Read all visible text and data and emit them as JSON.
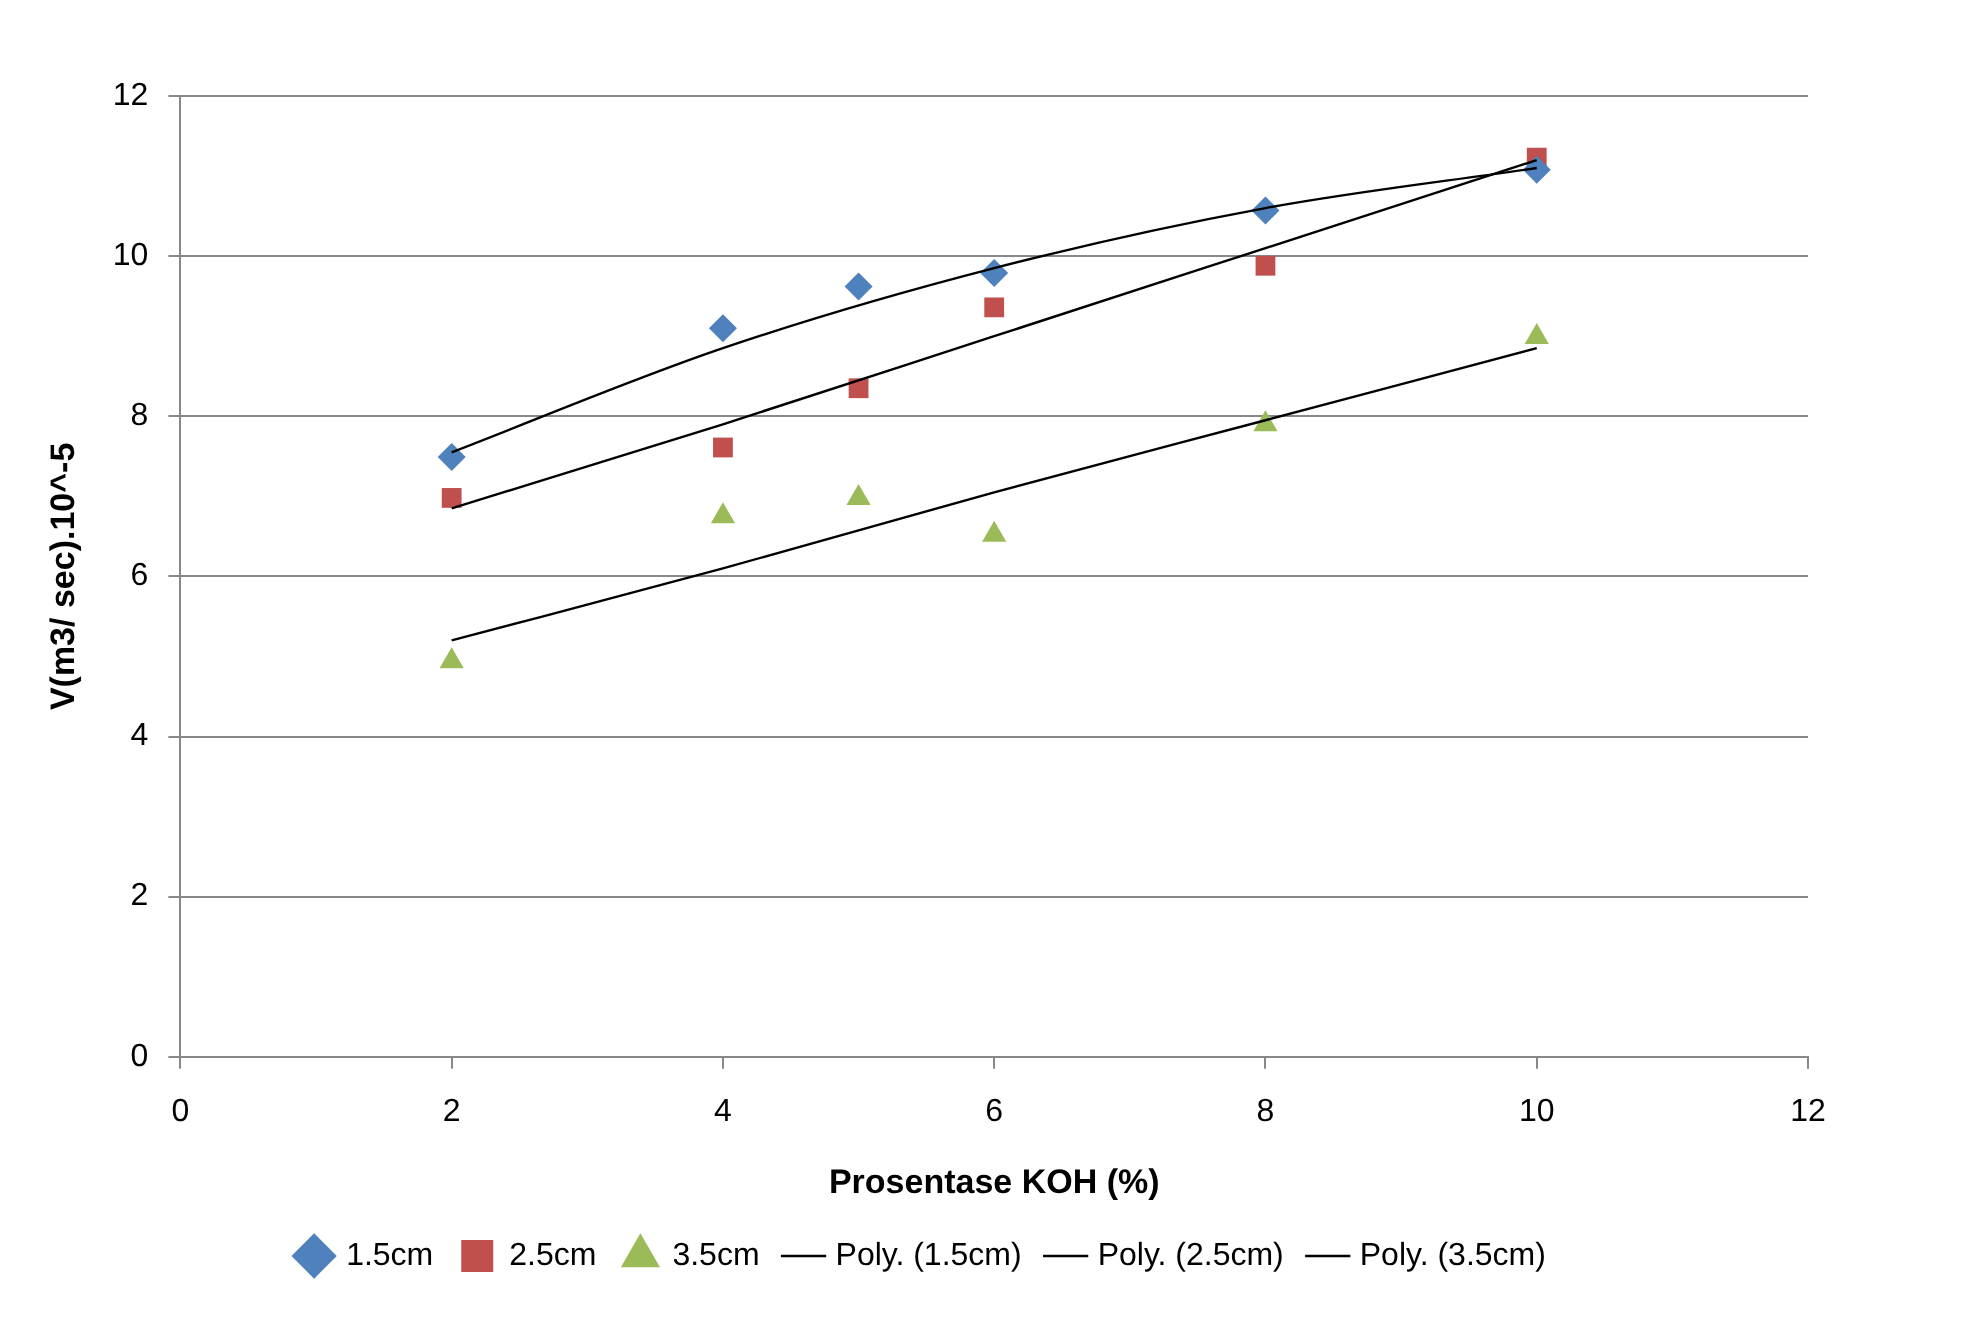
{
  "chart_data": {
    "type": "scatter",
    "xlabel": "Prosentase KOH (%)",
    "ylabel": "V(m3/ sec).10^-5",
    "x": [
      2,
      4,
      5,
      6,
      8,
      10
    ],
    "series": [
      {
        "name": "1.5cm",
        "color": "#4f81bd",
        "marker": "diamond",
        "values": [
          7.49,
          9.1,
          9.62,
          9.79,
          10.57,
          11.08
        ]
      },
      {
        "name": "2.5cm",
        "color": "#c0504d",
        "marker": "square",
        "values": [
          6.98,
          7.61,
          8.35,
          9.36,
          9.88,
          11.23
        ]
      },
      {
        "name": "3.5cm",
        "color": "#9bbb59",
        "marker": "triangle",
        "values": [
          4.94,
          6.75,
          6.98,
          6.52,
          7.9,
          8.99
        ]
      },
      {
        "name": "Poly. (1.5cm)",
        "type": "line",
        "color": "#000000",
        "marker": "none",
        "line_style": "solid",
        "x": [
          2,
          4,
          6,
          8,
          10
        ],
        "values": [
          7.55,
          8.85,
          9.85,
          10.6,
          11.1
        ]
      },
      {
        "name": "Poly. (2.5cm)",
        "type": "line",
        "color": "#000000",
        "marker": "none",
        "line_style": "solid",
        "x": [
          2,
          4,
          6,
          8,
          10
        ],
        "values": [
          6.85,
          7.9,
          9.0,
          10.1,
          11.2
        ]
      },
      {
        "name": "Poly. (3.5cm)",
        "type": "line",
        "color": "#000000",
        "marker": "none",
        "line_style": "solid",
        "x": [
          2,
          4,
          6,
          8,
          10
        ],
        "values": [
          5.2,
          6.1,
          7.05,
          7.95,
          8.85
        ]
      }
    ],
    "xlim": [
      0,
      12
    ],
    "xticks": [
      0,
      2,
      4,
      6,
      8,
      10,
      12
    ],
    "ylim": [
      0,
      12
    ],
    "yticks": [
      0,
      2,
      4,
      6,
      8,
      10,
      12
    ],
    "grid": "y",
    "legend": "bottom"
  }
}
